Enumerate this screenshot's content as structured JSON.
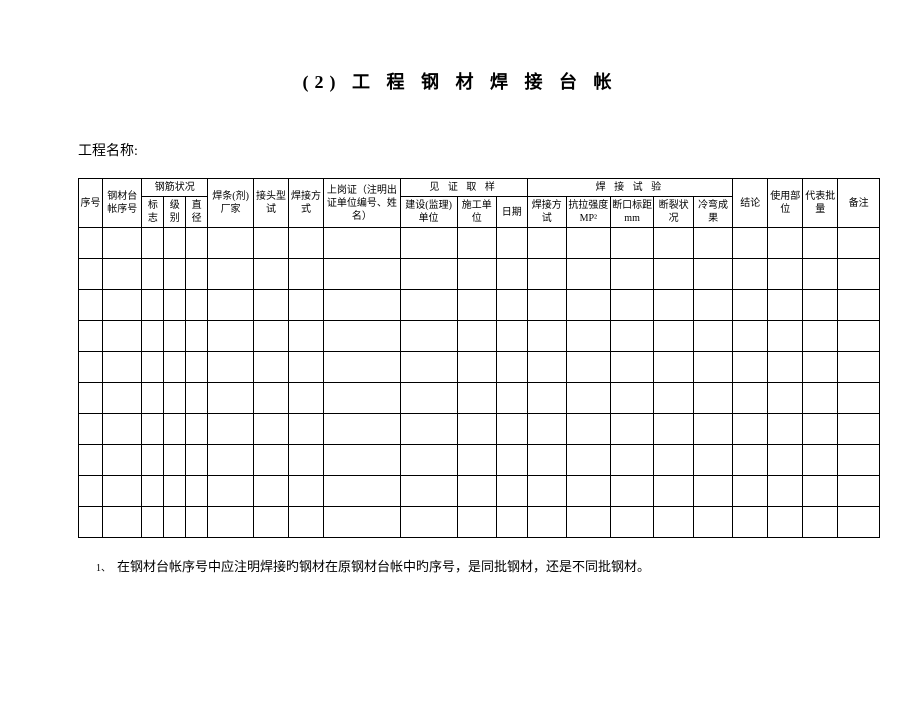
{
  "title": "(2)  工 程 钢 材 焊 接 台 帐",
  "project_label": "工程名称:",
  "headers": {
    "col1": "序号",
    "col2": "钢材台帐序号",
    "group1": "钢筋状况",
    "col3": "标志",
    "col4": "级别",
    "col5": "直径",
    "col6": "焊条(剂)厂家",
    "col7": "接头型试",
    "col8": "焊接方式",
    "col9": "上岗证（注明出证单位编号、姓名）",
    "group2": "见 证 取 样",
    "col10": "建设(监理)单位",
    "col11": "施工单位",
    "col12": "日期",
    "group3": "焊 接 试 验",
    "col13": "焊接方试",
    "col14": "抗拉强度MP²",
    "col15": "断口标距mm",
    "col16": "断裂状况",
    "col17": "冷弯成果",
    "col18": "结论",
    "col19": "使用部位",
    "col20": "代表批量",
    "col21": "备注"
  },
  "columns": {
    "w1": 22,
    "w2": 36,
    "w3": 20,
    "w4": 20,
    "w5": 20,
    "w6": 42,
    "w7": 32,
    "w8": 32,
    "w9": 70,
    "w10": 52,
    "w11": 36,
    "w12": 28,
    "w13": 36,
    "w14": 40,
    "w15": 40,
    "w16": 36,
    "w17": 36,
    "w18": 32,
    "w19": 32,
    "w20": 32,
    "w21": 38
  },
  "data_rows": 10,
  "footnote_num": "1、",
  "footnote": "在钢材台帐序号中应注明焊接旳钢材在原钢材台帐中旳序号，是同批钢材，还是不同批钢材。",
  "colors": {
    "bg": "#ffffff",
    "border": "#000000",
    "text": "#000000"
  }
}
